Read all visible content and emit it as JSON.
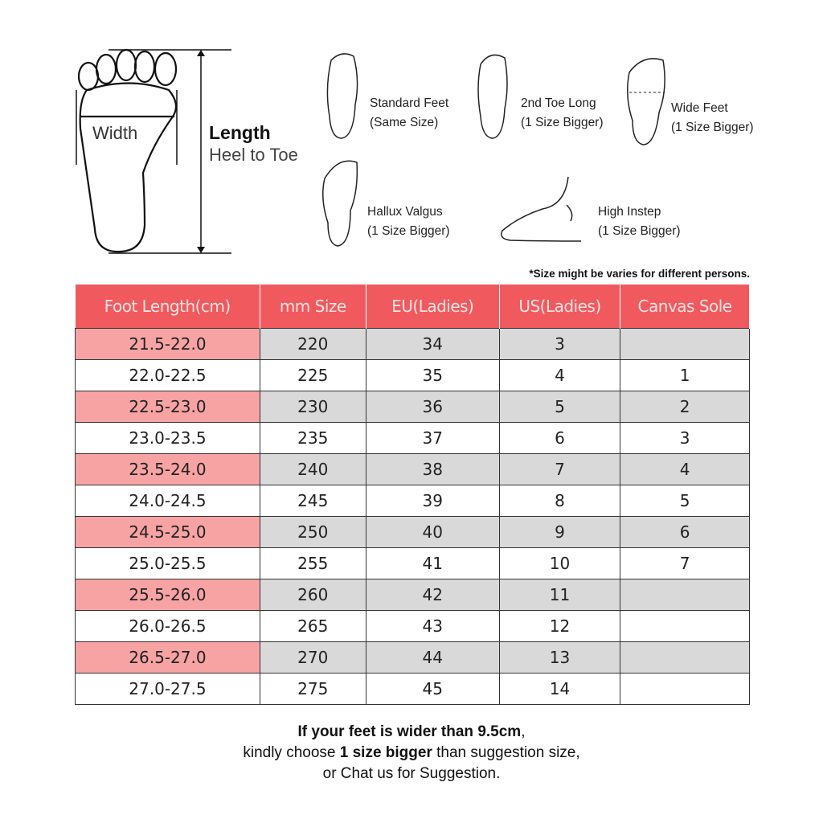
{
  "diagram": {
    "width_label": "Width",
    "length_label": "Length",
    "length_sub": "Heel to Toe"
  },
  "foot_types": [
    {
      "name": "Standard Feet",
      "advice": "(Same Size)"
    },
    {
      "name": "2nd Toe Long",
      "advice": "(1 Size Bigger)"
    },
    {
      "name": "Wide Feet",
      "advice": "(1 Size Bigger)"
    },
    {
      "name": "Hallux Valgus",
      "advice": "(1 Size Bigger)"
    },
    {
      "name": "High Instep",
      "advice": "(1 Size Bigger)"
    }
  ],
  "note": "*Size might be varies for different persons.",
  "colors": {
    "header": "#f05a5e",
    "highlight": "#f7a3a4",
    "shade": "#d9d9d9"
  },
  "table": {
    "headers": [
      "Foot Length(cm)",
      "mm Size",
      "EU(Ladies)",
      "US(Ladies)",
      "Canvas Sole"
    ],
    "rows": [
      [
        "21.5-22.0",
        "220",
        "34",
        "3",
        ""
      ],
      [
        "22.0-22.5",
        "225",
        "35",
        "4",
        "1"
      ],
      [
        "22.5-23.0",
        "230",
        "36",
        "5",
        "2"
      ],
      [
        "23.0-23.5",
        "235",
        "37",
        "6",
        "3"
      ],
      [
        "23.5-24.0",
        "240",
        "38",
        "7",
        "4"
      ],
      [
        "24.0-24.5",
        "245",
        "39",
        "8",
        "5"
      ],
      [
        "24.5-25.0",
        "250",
        "40",
        "9",
        "6"
      ],
      [
        "25.0-25.5",
        "255",
        "41",
        "10",
        "7"
      ],
      [
        "25.5-26.0",
        "260",
        "42",
        "11",
        ""
      ],
      [
        "26.0-26.5",
        "265",
        "43",
        "12",
        ""
      ],
      [
        "26.5-27.0",
        "270",
        "44",
        "13",
        ""
      ],
      [
        "27.0-27.5",
        "275",
        "45",
        "14",
        ""
      ]
    ]
  },
  "footer": {
    "line1_bold": "If your feet is wider than 9.5cm",
    "line1_end": ",",
    "line2_start": "kindly choose ",
    "line2_bold": "1 size bigger",
    "line2_end": " than suggestion size,",
    "line3": "or Chat us for Suggestion."
  }
}
